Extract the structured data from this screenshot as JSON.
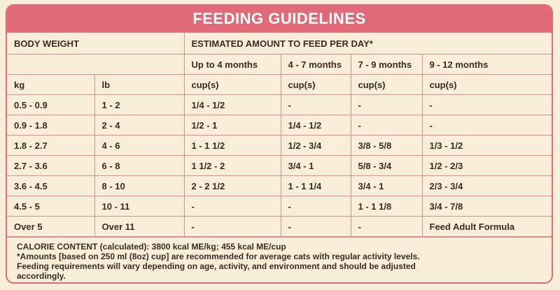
{
  "header": {
    "title": "FEEDING GUIDELINES"
  },
  "table": {
    "group_headers": [
      "BODY WEIGHT",
      "ESTIMATED AMOUNT TO FEED PER DAY*"
    ],
    "age_groups": [
      "Up to 4 months",
      "4 - 7 months",
      "7 - 9 months",
      "9 - 12 months"
    ],
    "units": [
      "kg",
      "lb",
      "cup(s)",
      "cup(s)",
      "cup(s)",
      "cup(s)"
    ],
    "rows": [
      [
        "0.5 - 0.9",
        "1 - 2",
        "1/4 - 1/2",
        "-",
        "-",
        "-"
      ],
      [
        "0.9 - 1.8",
        "2 - 4",
        "1/2 - 1",
        "1/4 - 1/2",
        "-",
        "-"
      ],
      [
        "1.8 - 2.7",
        "4 - 6",
        "1 - 1 1/2",
        "1/2 - 3/4",
        "3/8 - 5/8",
        "1/3 - 1/2"
      ],
      [
        "2.7 - 3.6",
        "6 - 8",
        "1 1/2 - 2",
        "3/4 - 1",
        "5/8 - 3/4",
        "1/2 - 2/3"
      ],
      [
        "3.6 - 4.5",
        "8 - 10",
        "2 - 2 1/2",
        "1 - 1 1/4",
        "3/4 - 1",
        "2/3 - 3/4"
      ],
      [
        "4.5 - 5",
        "10 - 11",
        "-",
        "-",
        "1 - 1 1/8",
        "3/4 - 7/8"
      ],
      [
        "Over 5",
        "Over 11",
        "-",
        "-",
        "-",
        "Feed Adult Formula"
      ]
    ]
  },
  "footer": {
    "calorie": "CALORIE CONTENT (calculated): 3800 kcal ME/kg; 455 kcal ME/cup",
    "notes": [
      "*Amounts [based on 250 ml (8oz) cup] are recommended for average cats with regular activity levels.",
      "Feeding requirements will vary depending on age, activity, and environment and should be adjusted",
      "accordingly."
    ]
  }
}
